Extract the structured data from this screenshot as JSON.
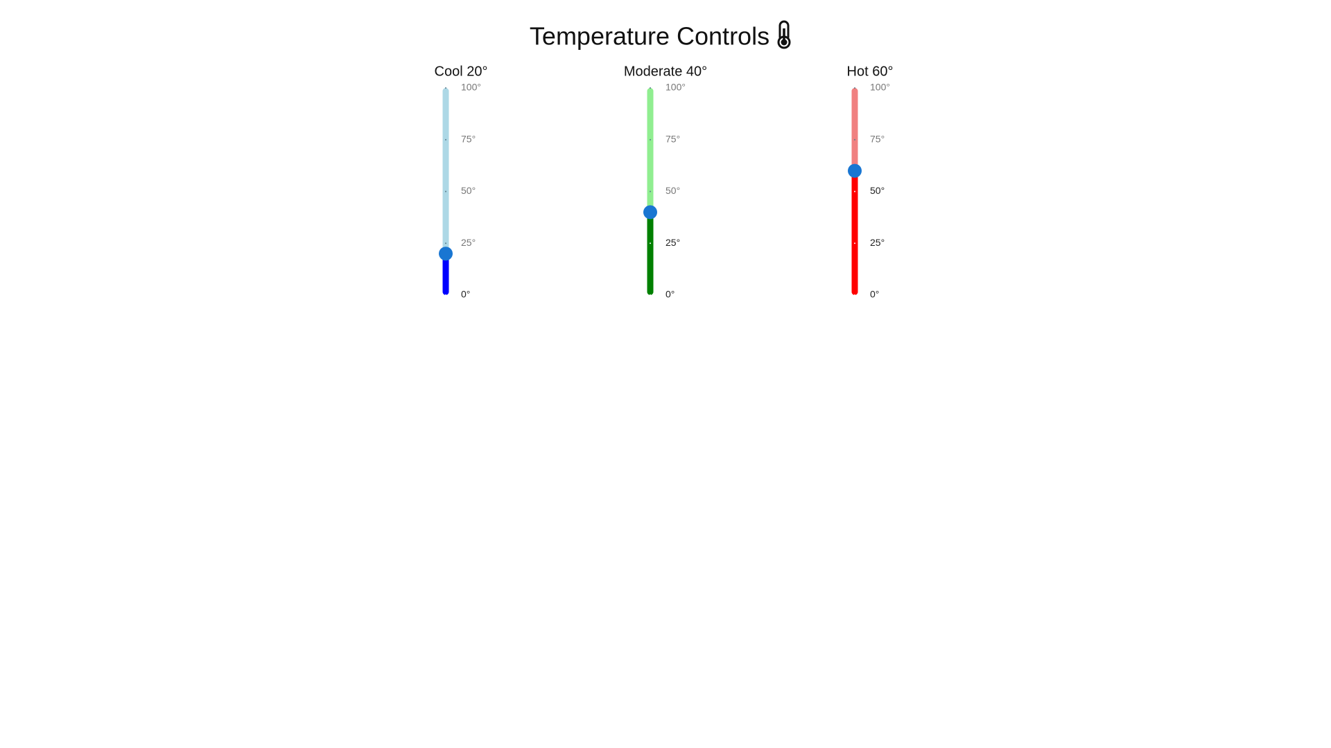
{
  "title": "Temperature Controls",
  "thumb_color": "#1976d2",
  "sliders": [
    {
      "label": "Cool 20°",
      "value": 20,
      "range": [
        0,
        100
      ],
      "ticks": [
        {
          "value": 0,
          "label": "0°"
        },
        {
          "value": 25,
          "label": "25°"
        },
        {
          "value": 50,
          "label": "50°"
        },
        {
          "value": 75,
          "label": "75°"
        },
        {
          "value": 100,
          "label": "100°"
        }
      ],
      "track_color": "#add8e6",
      "fill_color": "#0000ff"
    },
    {
      "label": "Moderate 40°",
      "value": 40,
      "range": [
        0,
        100
      ],
      "ticks": [
        {
          "value": 0,
          "label": "0°"
        },
        {
          "value": 25,
          "label": "25°"
        },
        {
          "value": 50,
          "label": "50°"
        },
        {
          "value": 75,
          "label": "75°"
        },
        {
          "value": 100,
          "label": "100°"
        }
      ],
      "track_color": "#90ee90",
      "fill_color": "#008000"
    },
    {
      "label": "Hot 60°",
      "value": 60,
      "range": [
        0,
        100
      ],
      "ticks": [
        {
          "value": 0,
          "label": "0°"
        },
        {
          "value": 25,
          "label": "25°"
        },
        {
          "value": 50,
          "label": "50°"
        },
        {
          "value": 75,
          "label": "75°"
        },
        {
          "value": 100,
          "label": "100°"
        }
      ],
      "track_color": "#f08080",
      "fill_color": "#ff0000"
    }
  ]
}
